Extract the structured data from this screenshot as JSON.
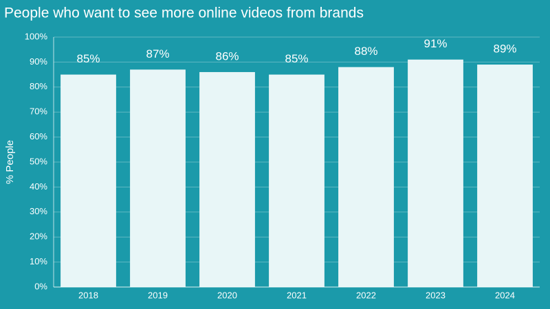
{
  "chart_data": {
    "type": "bar",
    "title": "People who want to see more online videos from brands",
    "y_label": "% People",
    "categories": [
      "2018",
      "2019",
      "2020",
      "2021",
      "2022",
      "2023",
      "2024"
    ],
    "values": [
      85,
      87,
      86,
      85,
      88,
      91,
      89
    ],
    "value_labels": [
      "85%",
      "87%",
      "86%",
      "85%",
      "88%",
      "91%",
      "89%"
    ],
    "color": "#e8f6f7",
    "ylim": [
      0,
      100
    ],
    "yticks": [
      {
        "value": 0,
        "label": "0%"
      },
      {
        "value": 10,
        "label": "10%"
      },
      {
        "value": 20,
        "label": "20%"
      },
      {
        "value": 30,
        "label": "30%"
      },
      {
        "value": 40,
        "label": "40%"
      },
      {
        "value": 50,
        "label": "50%"
      },
      {
        "value": 60,
        "label": "60%"
      },
      {
        "value": 70,
        "label": "70%"
      },
      {
        "value": 80,
        "label": "80%"
      },
      {
        "value": 90,
        "label": "90%"
      },
      {
        "value": 100,
        "label": "100%"
      }
    ],
    "grid": true
  }
}
